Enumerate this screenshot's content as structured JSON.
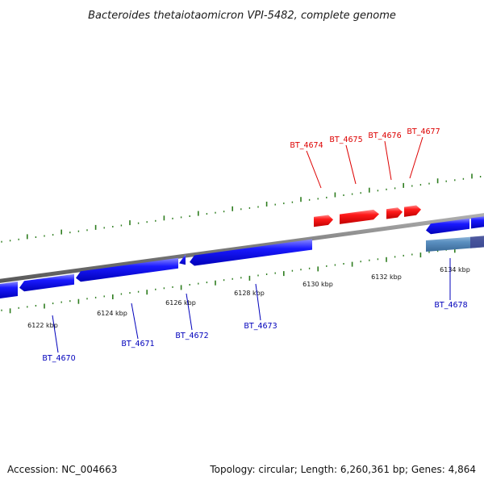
{
  "title": "Bacteroides thetaiotaomicron VPI-5482, complete genome",
  "footer": {
    "accession": "Accession: NC_004663",
    "summary": "Topology: circular; Length: 6,260,361 bp; Genes: 4,864"
  },
  "colors": {
    "plus_strand": "#ff0000",
    "minus_strand": "#0000ff",
    "tick_mark": "#2e7d1f",
    "backbone": "#808080",
    "label_plus": "#dd0000",
    "label_minus": "#0000bb",
    "selected_gene": "#5a8fc0"
  },
  "tick_labels": [
    "6122 kbp",
    "6124 kbp",
    "6126 kbp",
    "6128 kbp",
    "6130 kbp",
    "6132 kbp",
    "6134 kbp"
  ],
  "genes_plus": [
    {
      "name": "BT_4674"
    },
    {
      "name": "BT_4675"
    },
    {
      "name": "BT_4676"
    },
    {
      "name": "BT_4677"
    }
  ],
  "genes_minus": [
    {
      "name": "BT_4670"
    },
    {
      "name": "BT_4671"
    },
    {
      "name": "BT_4672"
    },
    {
      "name": "BT_4673"
    },
    {
      "name": "BT_4678"
    }
  ]
}
